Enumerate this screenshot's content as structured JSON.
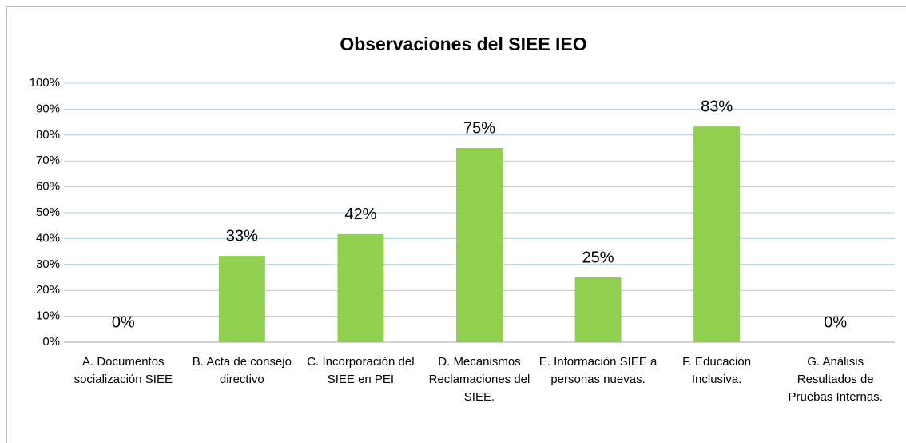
{
  "chart_data": {
    "type": "bar",
    "title": "Observaciones del SIEE IEO",
    "categories": [
      "A. Documentos socialización SIEE",
      "B. Acta de consejo directivo",
      "C. Incorporación del SIEE en PEI",
      "D. Mecanismos Reclamaciones del SIEE.",
      "E. Información SIEE a personas nuevas.",
      "F. Educación Inclusiva.",
      "G. Análisis Resultados de Pruebas Internas."
    ],
    "values": [
      0,
      33.3,
      41.7,
      75,
      25,
      83.3,
      0
    ],
    "value_labels": [
      "0%",
      "33%",
      "42%",
      "75%",
      "25%",
      "83%",
      "0%"
    ],
    "color": "#92d050",
    "ylim": [
      0,
      100
    ],
    "yticks": [
      {
        "value": 0,
        "label": "0%"
      },
      {
        "value": 10,
        "label": "10%"
      },
      {
        "value": 20,
        "label": "20%"
      },
      {
        "value": 30,
        "label": "30%"
      },
      {
        "value": 40,
        "label": "40%"
      },
      {
        "value": 50,
        "label": "50%"
      },
      {
        "value": 60,
        "label": "60%"
      },
      {
        "value": 70,
        "label": "70%"
      },
      {
        "value": 80,
        "label": "80%"
      },
      {
        "value": 90,
        "label": "90%"
      },
      {
        "value": 100,
        "label": "100%"
      }
    ],
    "grid": true
  }
}
